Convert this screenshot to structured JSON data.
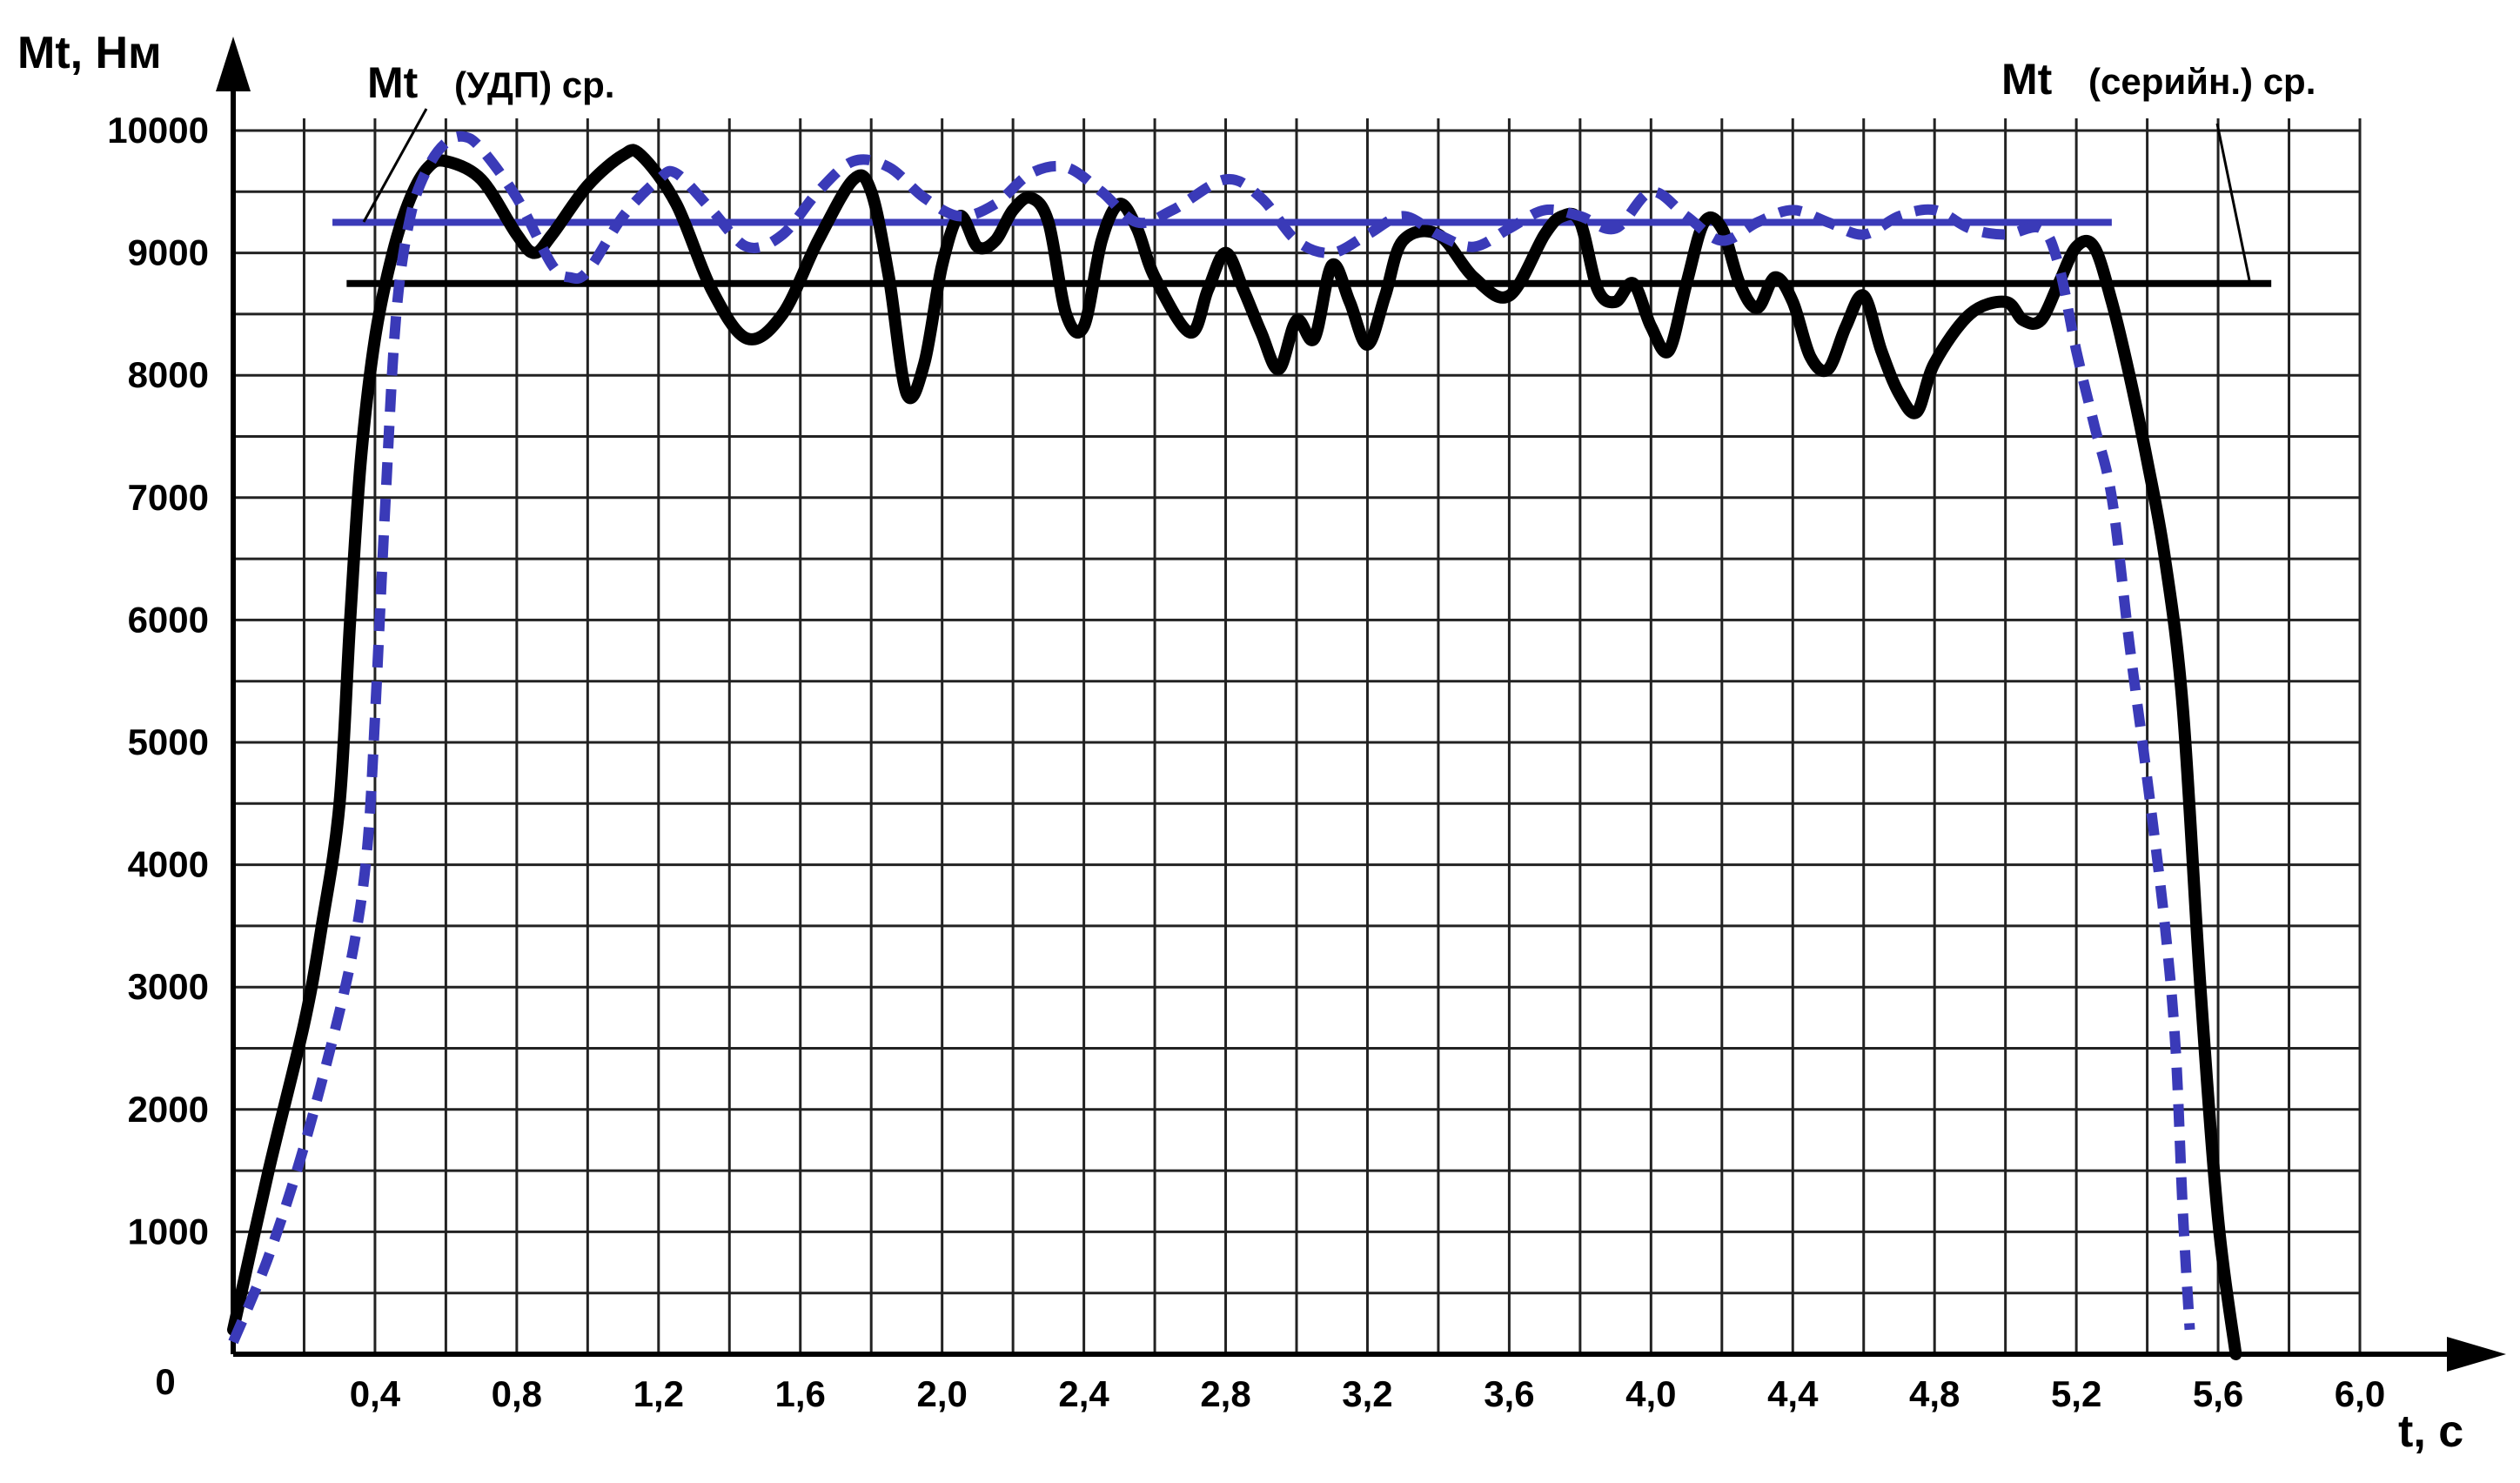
{
  "chart_data": {
    "type": "line",
    "ylabel": "Mt, Нм",
    "xlabel": "t, c",
    "origin_label": "0",
    "xlim": [
      0,
      6.0
    ],
    "ylim": [
      0,
      10000
    ],
    "x_ticks": [
      0.4,
      0.8,
      1.2,
      1.6,
      2.0,
      2.4,
      2.8,
      3.2,
      3.6,
      4.0,
      4.4,
      4.8,
      5.2,
      5.6,
      6.0
    ],
    "x_tick_labels": [
      "0,4",
      "0,8",
      "1,2",
      "1,6",
      "2,0",
      "2,4",
      "2,8",
      "3,2",
      "3,6",
      "4,0",
      "4,4",
      "4,8",
      "5,2",
      "5,6",
      "6,0"
    ],
    "y_ticks": [
      1000,
      2000,
      3000,
      4000,
      5000,
      6000,
      7000,
      8000,
      9000,
      10000
    ],
    "y_tick_labels": [
      "1000",
      "2000",
      "3000",
      "4000",
      "5000",
      "6000",
      "7000",
      "8000",
      "9000",
      "10000"
    ],
    "grid": true,
    "grid_x_step": 0.2,
    "grid_y_step": 500,
    "annotations": {
      "udp_main": "Mt",
      "udp_sub": "(УДП) ср.",
      "serial_main": "Mt",
      "serial_sub": "(серийн.) ср."
    },
    "series": [
      {
        "style": "solid",
        "color": "#000000",
        "points": [
          [
            0.0,
            200
          ],
          [
            0.1,
            1500
          ],
          [
            0.2,
            2700
          ],
          [
            0.25,
            3500
          ],
          [
            0.3,
            4500
          ],
          [
            0.33,
            6000
          ],
          [
            0.36,
            7300
          ],
          [
            0.4,
            8300
          ],
          [
            0.45,
            9000
          ],
          [
            0.5,
            9450
          ],
          [
            0.55,
            9700
          ],
          [
            0.6,
            9750
          ],
          [
            0.7,
            9600
          ],
          [
            0.8,
            9150
          ],
          [
            0.85,
            9000
          ],
          [
            0.9,
            9150
          ],
          [
            1.0,
            9550
          ],
          [
            1.1,
            9800
          ],
          [
            1.15,
            9800
          ],
          [
            1.25,
            9400
          ],
          [
            1.35,
            8700
          ],
          [
            1.45,
            8300
          ],
          [
            1.55,
            8500
          ],
          [
            1.65,
            9100
          ],
          [
            1.75,
            9600
          ],
          [
            1.8,
            9500
          ],
          [
            1.85,
            8800
          ],
          [
            1.9,
            7850
          ],
          [
            1.95,
            8100
          ],
          [
            2.0,
            8900
          ],
          [
            2.05,
            9300
          ],
          [
            2.1,
            9050
          ],
          [
            2.15,
            9100
          ],
          [
            2.2,
            9350
          ],
          [
            2.25,
            9450
          ],
          [
            2.3,
            9250
          ],
          [
            2.35,
            8500
          ],
          [
            2.4,
            8400
          ],
          [
            2.45,
            9100
          ],
          [
            2.5,
            9400
          ],
          [
            2.55,
            9200
          ],
          [
            2.6,
            8800
          ],
          [
            2.7,
            8350
          ],
          [
            2.75,
            8700
          ],
          [
            2.8,
            9000
          ],
          [
            2.85,
            8700
          ],
          [
            2.9,
            8350
          ],
          [
            2.95,
            8050
          ],
          [
            3.0,
            8450
          ],
          [
            3.05,
            8300
          ],
          [
            3.1,
            8900
          ],
          [
            3.15,
            8600
          ],
          [
            3.2,
            8250
          ],
          [
            3.25,
            8650
          ],
          [
            3.3,
            9100
          ],
          [
            3.4,
            9150
          ],
          [
            3.5,
            8800
          ],
          [
            3.6,
            8650
          ],
          [
            3.7,
            9150
          ],
          [
            3.75,
            9300
          ],
          [
            3.8,
            9250
          ],
          [
            3.85,
            8700
          ],
          [
            3.9,
            8600
          ],
          [
            3.95,
            8750
          ],
          [
            4.0,
            8400
          ],
          [
            4.05,
            8200
          ],
          [
            4.1,
            8750
          ],
          [
            4.15,
            9250
          ],
          [
            4.2,
            9200
          ],
          [
            4.25,
            8750
          ],
          [
            4.3,
            8550
          ],
          [
            4.35,
            8800
          ],
          [
            4.4,
            8600
          ],
          [
            4.45,
            8150
          ],
          [
            4.5,
            8050
          ],
          [
            4.55,
            8400
          ],
          [
            4.6,
            8650
          ],
          [
            4.65,
            8200
          ],
          [
            4.7,
            7850
          ],
          [
            4.75,
            7700
          ],
          [
            4.8,
            8100
          ],
          [
            4.9,
            8500
          ],
          [
            5.0,
            8600
          ],
          [
            5.05,
            8450
          ],
          [
            5.1,
            8450
          ],
          [
            5.15,
            8750
          ],
          [
            5.2,
            9050
          ],
          [
            5.25,
            9050
          ],
          [
            5.3,
            8600
          ],
          [
            5.35,
            8000
          ],
          [
            5.4,
            7300
          ],
          [
            5.45,
            6500
          ],
          [
            5.5,
            5300
          ],
          [
            5.55,
            3000
          ],
          [
            5.6,
            1100
          ],
          [
            5.65,
            0
          ]
        ]
      },
      {
        "style": "dashed",
        "color": "#3a3ab8",
        "points": [
          [
            0.0,
            100
          ],
          [
            0.1,
            800
          ],
          [
            0.2,
            1700
          ],
          [
            0.3,
            2800
          ],
          [
            0.35,
            3500
          ],
          [
            0.38,
            4200
          ],
          [
            0.4,
            5200
          ],
          [
            0.43,
            7000
          ],
          [
            0.46,
            8500
          ],
          [
            0.5,
            9300
          ],
          [
            0.55,
            9700
          ],
          [
            0.6,
            9900
          ],
          [
            0.65,
            9950
          ],
          [
            0.7,
            9850
          ],
          [
            0.8,
            9450
          ],
          [
            0.9,
            8900
          ],
          [
            0.95,
            8800
          ],
          [
            1.0,
            8850
          ],
          [
            1.1,
            9300
          ],
          [
            1.2,
            9600
          ],
          [
            1.25,
            9650
          ],
          [
            1.35,
            9350
          ],
          [
            1.45,
            9050
          ],
          [
            1.55,
            9150
          ],
          [
            1.65,
            9500
          ],
          [
            1.75,
            9750
          ],
          [
            1.85,
            9700
          ],
          [
            1.95,
            9450
          ],
          [
            2.05,
            9300
          ],
          [
            2.15,
            9400
          ],
          [
            2.25,
            9650
          ],
          [
            2.35,
            9700
          ],
          [
            2.45,
            9500
          ],
          [
            2.55,
            9250
          ],
          [
            2.65,
            9350
          ],
          [
            2.8,
            9600
          ],
          [
            2.9,
            9450
          ],
          [
            3.0,
            9100
          ],
          [
            3.1,
            9000
          ],
          [
            3.2,
            9150
          ],
          [
            3.3,
            9300
          ],
          [
            3.4,
            9150
          ],
          [
            3.5,
            9050
          ],
          [
            3.6,
            9200
          ],
          [
            3.7,
            9350
          ],
          [
            3.8,
            9300
          ],
          [
            3.9,
            9200
          ],
          [
            4.0,
            9500
          ],
          [
            4.1,
            9300
          ],
          [
            4.2,
            9100
          ],
          [
            4.3,
            9250
          ],
          [
            4.4,
            9350
          ],
          [
            4.5,
            9250
          ],
          [
            4.6,
            9150
          ],
          [
            4.7,
            9300
          ],
          [
            4.8,
            9350
          ],
          [
            4.9,
            9200
          ],
          [
            5.0,
            9150
          ],
          [
            5.1,
            9200
          ],
          [
            5.15,
            8900
          ],
          [
            5.2,
            8200
          ],
          [
            5.25,
            7600
          ],
          [
            5.3,
            7000
          ],
          [
            5.35,
            5800
          ],
          [
            5.4,
            4700
          ],
          [
            5.45,
            3500
          ],
          [
            5.48,
            2500
          ],
          [
            5.5,
            1200
          ],
          [
            5.52,
            200
          ]
        ]
      }
    ],
    "reference_lines": [
      {
        "label_ref": "udp",
        "value": 9250,
        "x_start": 0.28,
        "x_end": 5.3,
        "color": "#3a3ab8"
      },
      {
        "label_ref": "serial",
        "value": 8750,
        "x_start": 0.32,
        "x_end": 5.75,
        "color": "#000000"
      }
    ]
  }
}
